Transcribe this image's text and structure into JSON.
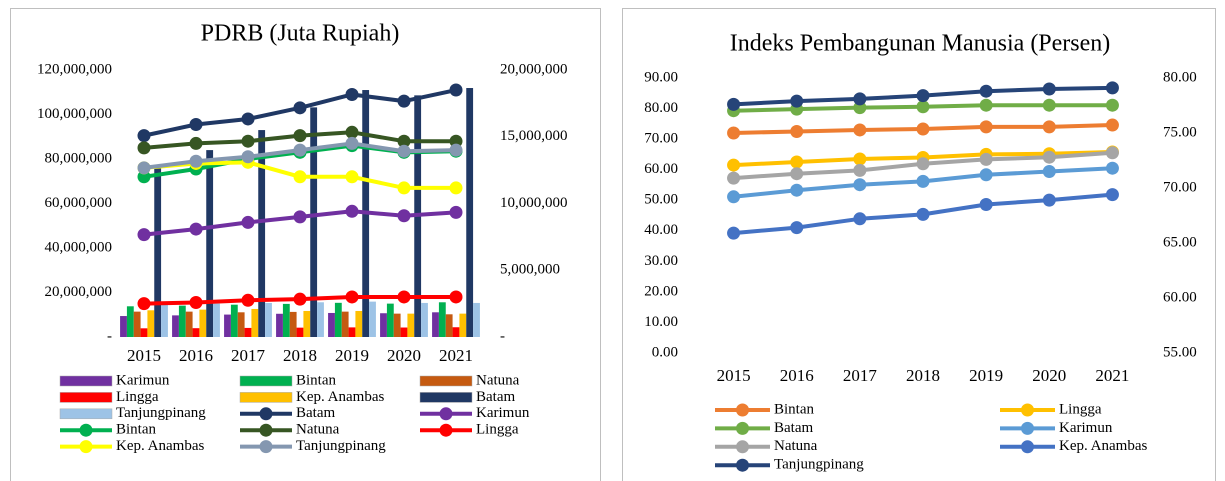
{
  "chart_data": [
    {
      "type": "combo",
      "title": "PDRB (Juta Rupiah)",
      "categories": [
        "2015",
        "2016",
        "2017",
        "2018",
        "2019",
        "2020",
        "2021"
      ],
      "ylim": [
        0,
        120000000
      ],
      "yticks": [
        {
          "value": 0,
          "label": "-"
        },
        {
          "value": 20000000,
          "label": "20,000,000"
        },
        {
          "value": 40000000,
          "label": "40,000,000"
        },
        {
          "value": 60000000,
          "label": "60,000,000"
        },
        {
          "value": 80000000,
          "label": "80,000,000"
        },
        {
          "value": 100000000,
          "label": "100,000,000"
        },
        {
          "value": 120000000,
          "label": "120,000,000"
        }
      ],
      "y2lim": [
        0,
        20000000
      ],
      "y2ticks": [
        {
          "value": 0,
          "label": "-"
        },
        {
          "value": 5000000,
          "label": "5,000,000"
        },
        {
          "value": 10000000,
          "label": "10,000,000"
        },
        {
          "value": 15000000,
          "label": "15,000,000"
        },
        {
          "value": 20000000,
          "label": "20,000,000"
        }
      ],
      "series": [
        {
          "name": "Karimun",
          "type": "bar",
          "axis": "y2",
          "color": "#7030a0",
          "values": [
            1570000,
            1620000,
            1680000,
            1740000,
            1800000,
            1780000,
            1850000
          ]
        },
        {
          "name": "Bintan",
          "type": "bar",
          "axis": "y2",
          "color": "#00b050",
          "values": [
            2300000,
            2350000,
            2420000,
            2480000,
            2560000,
            2500000,
            2600000
          ]
        },
        {
          "name": "Natuna",
          "type": "bar",
          "axis": "y2",
          "color": "#c55a11",
          "values": [
            1900000,
            1900000,
            1850000,
            1880000,
            1900000,
            1750000,
            1700000
          ]
        },
        {
          "name": "Lingga",
          "type": "bar",
          "axis": "y2",
          "color": "#ff0000",
          "values": [
            650000,
            660000,
            680000,
            700000,
            720000,
            710000,
            730000
          ]
        },
        {
          "name": "Kep. Anambas",
          "type": "bar",
          "axis": "y2",
          "color": "#ffc000",
          "values": [
            2000000,
            2050000,
            2100000,
            1950000,
            1950000,
            1750000,
            1750000
          ]
        },
        {
          "name": "Batam",
          "type": "bar",
          "axis": "y2",
          "color": "#203864",
          "values": [
            12900000,
            14000000,
            15500000,
            17200000,
            18500000,
            18100000,
            18650000
          ]
        },
        {
          "name": "Tanjungpinang",
          "type": "bar",
          "axis": "y2",
          "color": "#9dc3e6",
          "values": [
            2450000,
            2500000,
            2550000,
            2600000,
            2650000,
            2550000,
            2550000
          ]
        },
        {
          "name": "Batam",
          "type": "line",
          "color": "#203864",
          "values": [
            90500000,
            95500000,
            98000000,
            103000000,
            109000000,
            106000000,
            111000000
          ]
        },
        {
          "name": "Karimun",
          "type": "line",
          "color": "#7030a0",
          "values": [
            46000000,
            48500000,
            51500000,
            54000000,
            56500000,
            54500000,
            56000000
          ]
        },
        {
          "name": "Bintan",
          "type": "line",
          "color": "#00b050",
          "values": [
            72000000,
            75500000,
            80000000,
            83000000,
            86000000,
            83000000,
            83500000
          ]
        },
        {
          "name": "Natuna",
          "type": "line",
          "color": "#375623",
          "values": [
            85000000,
            87000000,
            88000000,
            90500000,
            92000000,
            88000000,
            88000000
          ]
        },
        {
          "name": "Lingga",
          "type": "line",
          "color": "#ff0000",
          "values": [
            15000000,
            15500000,
            16500000,
            17000000,
            18000000,
            18000000,
            18000000
          ]
        },
        {
          "name": "Kep. Anambas",
          "type": "line",
          "color": "#ffff00",
          "values": [
            76000000,
            78000000,
            78500000,
            72000000,
            72000000,
            67000000,
            67000000
          ]
        },
        {
          "name": "Tanjungpinang",
          "type": "line",
          "color": "#8497b0",
          "values": [
            76000000,
            79000000,
            81000000,
            84000000,
            87000000,
            83500000,
            84000000
          ]
        }
      ]
    },
    {
      "type": "line",
      "title": "Indeks Pembangunan Manusia (Persen)",
      "categories": [
        "2015",
        "2016",
        "2017",
        "2018",
        "2019",
        "2020",
        "2021"
      ],
      "ylim": [
        0,
        90
      ],
      "yticks": [
        {
          "value": 0,
          "label": "0.00"
        },
        {
          "value": 10,
          "label": "10.00"
        },
        {
          "value": 20,
          "label": "20.00"
        },
        {
          "value": 30,
          "label": "30.00"
        },
        {
          "value": 40,
          "label": "40.00"
        },
        {
          "value": 50,
          "label": "50.00"
        },
        {
          "value": 60,
          "label": "60.00"
        },
        {
          "value": 70,
          "label": "70.00"
        },
        {
          "value": 80,
          "label": "80.00"
        },
        {
          "value": 90,
          "label": "90.00"
        }
      ],
      "y2lim": [
        55,
        80
      ],
      "y2ticks": [
        {
          "value": 55,
          "label": "55.00"
        },
        {
          "value": 60,
          "label": "60.00"
        },
        {
          "value": 65,
          "label": "65.00"
        },
        {
          "value": 70,
          "label": "70.00"
        },
        {
          "value": 75,
          "label": "75.00"
        },
        {
          "value": 80,
          "label": "80.00"
        }
      ],
      "series": [
        {
          "name": "Bintan",
          "color": "#ed7d31",
          "values": [
            72,
            72.5,
            73,
            73.3,
            74,
            74,
            74.6
          ]
        },
        {
          "name": "Lingga",
          "color": "#ffc000",
          "values": [
            61.5,
            62.5,
            63.5,
            64,
            65,
            65.2,
            65.8
          ]
        },
        {
          "name": "Batam",
          "color": "#70ad47",
          "values": [
            79.3,
            79.8,
            80.3,
            80.6,
            81.1,
            81.1,
            81.1
          ]
        },
        {
          "name": "Karimun",
          "axis": "y2",
          "color": "#5b9bd5",
          "values": [
            69.2,
            69.8,
            70.3,
            70.6,
            71.2,
            71.5,
            71.8
          ]
        },
        {
          "name": "Natuna",
          "axis": "y2",
          "color": "#a5a5a5",
          "values": [
            70.9,
            71.3,
            71.6,
            72.2,
            72.6,
            72.8,
            73.2
          ]
        },
        {
          "name": "Kep. Anambas",
          "axis": "y2",
          "color": "#4472c4",
          "values": [
            65.9,
            66.4,
            67.2,
            67.6,
            68.5,
            68.9,
            69.4
          ]
        },
        {
          "name": "Tanjungpinang",
          "axis": "y2",
          "color": "#264478",
          "values": [
            77.6,
            77.9,
            78.1,
            78.4,
            78.8,
            79.0,
            79.1
          ]
        }
      ]
    }
  ]
}
